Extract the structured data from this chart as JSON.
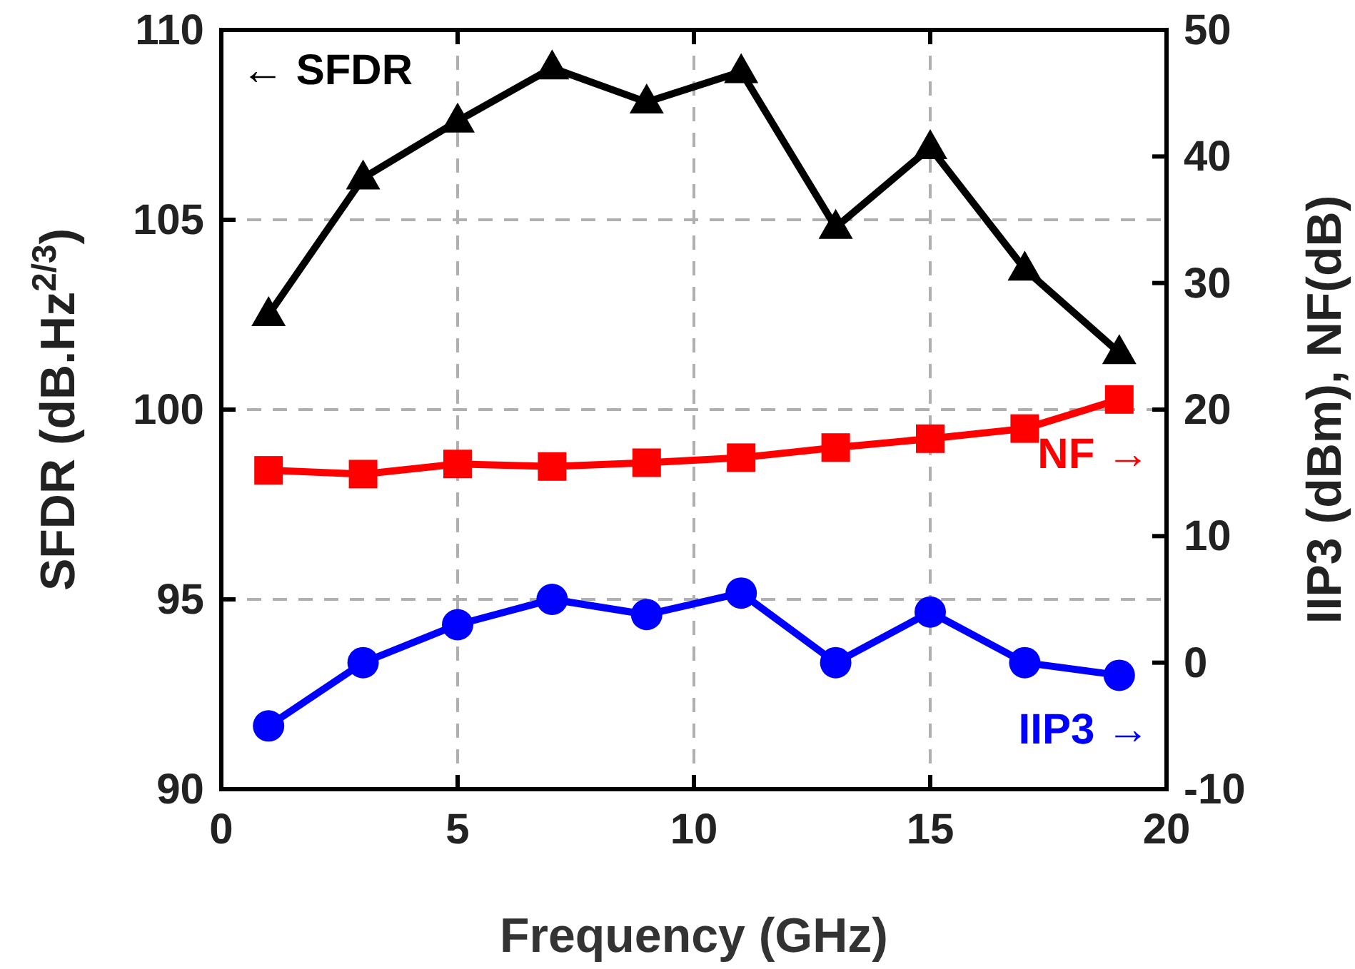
{
  "chart_data": {
    "type": "line",
    "xlabel": "Frequency (GHz)",
    "ylabel": "SFDR (dB.Hz$^{2/3}$)",
    "y2label": "IIP3 (dBm), NF(dB)",
    "x": [
      1,
      3,
      5,
      7,
      9,
      11,
      13,
      15,
      17,
      19
    ],
    "series": [
      {
        "name": "← SFDR",
        "color": "#000000",
        "marker": "triangle",
        "values": [
          102.5,
          106.1,
          107.6,
          109.0,
          108.1,
          108.9,
          104.8,
          106.9,
          103.7,
          101.5
        ]
      },
      {
        "name": "NF →",
        "color": "#ff0000",
        "marker": "square",
        "axis": "y2",
        "values": [
          15.2,
          14.9,
          15.7,
          15.5,
          15.8,
          16.2,
          17.0,
          17.7,
          18.5,
          20.8
        ]
      },
      {
        "name": "IIP3 →",
        "color": "#0000ff",
        "marker": "circle",
        "axis": "y2",
        "values": [
          -5,
          0,
          3,
          5,
          3.8,
          5.5,
          0,
          4,
          0,
          -1
        ]
      }
    ],
    "xlim": [
      0,
      20
    ],
    "xticks": [
      0,
      5,
      10,
      15,
      20
    ],
    "ylim": [
      90,
      110
    ],
    "yticks": [
      90,
      95,
      100,
      105,
      110
    ],
    "y2lim": [
      -10,
      50
    ],
    "y2ticks": [
      -10,
      0,
      10,
      20,
      30,
      40,
      50
    ],
    "grid": true,
    "legend": false,
    "line_style": "solid"
  }
}
